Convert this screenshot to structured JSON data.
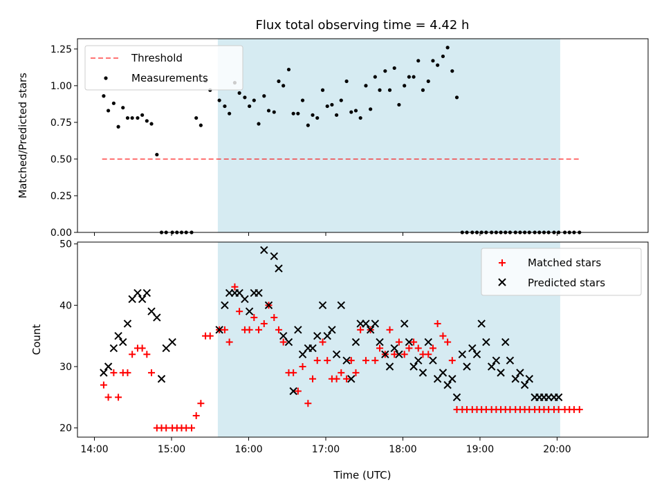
{
  "chart_data": {
    "title": "Flux total observing time = 4.42 h",
    "xlabel": "Time (UTC)",
    "x_unit": "hours UTC",
    "x_range": [
      13.78,
      21.18
    ],
    "x_ticks": [
      {
        "value": 14,
        "label": "14:00"
      },
      {
        "value": 15,
        "label": "15:00"
      },
      {
        "value": 16,
        "label": "16:00"
      },
      {
        "value": 17,
        "label": "17:00"
      },
      {
        "value": 18,
        "label": "18:00"
      },
      {
        "value": 19,
        "label": "19:00"
      },
      {
        "value": 20,
        "label": "20:00"
      }
    ],
    "observing_span": [
      15.6,
      20.04
    ],
    "colors": {
      "span": "#add8e6",
      "threshold": "#ff0000",
      "matched": "#ff0000",
      "predicted": "#000000",
      "measurement": "#000000"
    },
    "panels": [
      {
        "type": "scatter",
        "ylabel": "Matched/Predicted stars",
        "ylim": [
          0,
          1.32
        ],
        "y_ticks": [
          {
            "value": 0,
            "label": "0.00"
          },
          {
            "value": 0.25,
            "label": "0.25"
          },
          {
            "value": 0.5,
            "label": "0.50"
          },
          {
            "value": 0.75,
            "label": "0.75"
          },
          {
            "value": 1.0,
            "label": "1.00"
          },
          {
            "value": 1.25,
            "label": "1.25"
          }
        ],
        "legend": {
          "position": "top-left",
          "entries": [
            {
              "label": "Threshold",
              "kind": "dashed-line"
            },
            {
              "label": "Measurements",
              "kind": "dot"
            }
          ]
        },
        "threshold": {
          "value": 0.5,
          "x_from": 14.1,
          "x_to": 20.3
        },
        "measurements": {
          "x": [
            14.12,
            14.18,
            14.25,
            14.31,
            14.37,
            14.43,
            14.49,
            14.56,
            14.62,
            14.68,
            14.74,
            14.81,
            14.87,
            14.93,
            15.01,
            15.07,
            15.13,
            15.19,
            15.26,
            15.32,
            15.38,
            15.44,
            15.5,
            15.62,
            15.69,
            15.75,
            15.82,
            15.88,
            15.95,
            16.01,
            16.07,
            16.13,
            16.2,
            16.26,
            16.33,
            16.39,
            16.45,
            16.52,
            16.58,
            16.64,
            16.7,
            16.77,
            16.83,
            16.89,
            16.96,
            17.02,
            17.08,
            17.14,
            17.2,
            17.27,
            17.33,
            17.39,
            17.45,
            17.52,
            17.58,
            17.64,
            17.7,
            17.77,
            17.83,
            17.89,
            17.95,
            18.02,
            18.08,
            18.14,
            18.2,
            18.26,
            18.33,
            18.39,
            18.45,
            18.52,
            18.58,
            18.64,
            18.7,
            18.77,
            18.83,
            18.9,
            18.96,
            19.02,
            19.08,
            19.15,
            19.21,
            19.27,
            19.33,
            19.39,
            19.46,
            19.52,
            19.58,
            19.64,
            19.71,
            19.77,
            19.83,
            19.89,
            19.96,
            20.02,
            20.1,
            20.16,
            20.22,
            20.29
          ],
          "y": [
            0.93,
            0.83,
            0.88,
            0.72,
            0.85,
            0.78,
            0.78,
            0.78,
            0.8,
            0.76,
            0.74,
            0.53,
            0,
            0,
            0,
            0,
            0,
            0,
            0,
            0.78,
            0.73,
            1.03,
            0.97,
            0.9,
            0.86,
            0.81,
            1.02,
            0.95,
            0.92,
            0.86,
            0.9,
            0.74,
            0.93,
            0.83,
            0.82,
            1.03,
            1.0,
            1.11,
            0.81,
            0.81,
            0.9,
            0.73,
            0.8,
            0.78,
            0.97,
            0.86,
            0.87,
            0.8,
            0.9,
            1.03,
            0.82,
            0.83,
            0.78,
            1.0,
            0.84,
            1.06,
            0.97,
            1.1,
            0.97,
            1.12,
            0.87,
            1.0,
            1.06,
            1.06,
            1.17,
            0.97,
            1.03,
            1.17,
            1.14,
            1.2,
            1.26,
            1.1,
            0.92,
            0,
            0,
            0,
            0,
            0,
            0,
            0,
            0,
            0,
            0,
            0,
            0,
            0,
            0,
            0,
            0,
            0,
            0,
            0,
            0,
            0,
            0,
            0,
            0,
            0
          ]
        }
      },
      {
        "type": "scatter",
        "ylabel": "Count",
        "ylim": [
          18.5,
          50.3
        ],
        "y_ticks": [
          {
            "value": 20,
            "label": "20"
          },
          {
            "value": 30,
            "label": "30"
          },
          {
            "value": 40,
            "label": "40"
          },
          {
            "value": 50,
            "label": "50"
          }
        ],
        "legend": {
          "position": "top-right",
          "entries": [
            {
              "label": "Matched stars",
              "kind": "plus"
            },
            {
              "label": "Predicted stars",
              "kind": "cross"
            }
          ]
        },
        "matched": {
          "x": [
            14.12,
            14.18,
            14.25,
            14.31,
            14.37,
            14.43,
            14.49,
            14.56,
            14.62,
            14.68,
            14.74,
            14.81,
            14.87,
            14.93,
            15.01,
            15.07,
            15.13,
            15.19,
            15.26,
            15.32,
            15.38,
            15.44,
            15.5,
            15.62,
            15.69,
            15.75,
            15.82,
            15.88,
            15.95,
            16.01,
            16.07,
            16.13,
            16.2,
            16.26,
            16.33,
            16.39,
            16.45,
            16.52,
            16.58,
            16.64,
            16.7,
            16.77,
            16.83,
            16.89,
            16.96,
            17.02,
            17.08,
            17.14,
            17.2,
            17.27,
            17.33,
            17.39,
            17.45,
            17.52,
            17.58,
            17.64,
            17.7,
            17.77,
            17.83,
            17.89,
            17.95,
            18.02,
            18.08,
            18.14,
            18.2,
            18.26,
            18.33,
            18.39,
            18.45,
            18.52,
            18.58,
            18.64,
            18.7,
            18.77,
            18.83,
            18.9,
            18.96,
            19.02,
            19.08,
            19.15,
            19.21,
            19.27,
            19.33,
            19.39,
            19.46,
            19.52,
            19.58,
            19.64,
            19.71,
            19.77,
            19.83,
            19.89,
            19.96,
            20.02,
            20.1,
            20.16,
            20.22,
            20.29
          ],
          "y": [
            27,
            25,
            29,
            25,
            29,
            29,
            32,
            33,
            33,
            32,
            29,
            20,
            20,
            20,
            20,
            20,
            20,
            20,
            20,
            22,
            24,
            35,
            35,
            36,
            36,
            34,
            43,
            39,
            36,
            36,
            38,
            36,
            37,
            40,
            38,
            36,
            34,
            29,
            29,
            26,
            30,
            24,
            28,
            31,
            34,
            31,
            28,
            28,
            29,
            28,
            31,
            29,
            36,
            31,
            36,
            31,
            33,
            32,
            36,
            32,
            34,
            32,
            33,
            34,
            33,
            32,
            32,
            33,
            37,
            35,
            34,
            31,
            23,
            23,
            23,
            23,
            23,
            23,
            23,
            23,
            23,
            23,
            23,
            23,
            23,
            23,
            23,
            23,
            23,
            23,
            23,
            23,
            23,
            23,
            23,
            23,
            23,
            23
          ]
        },
        "predicted": {
          "x": [
            14.12,
            14.18,
            14.25,
            14.31,
            14.37,
            14.43,
            14.49,
            14.56,
            14.62,
            14.68,
            14.74,
            14.81,
            14.87,
            14.93,
            15.01,
            15.62,
            15.69,
            15.75,
            15.82,
            15.88,
            15.95,
            16.01,
            16.07,
            16.13,
            16.2,
            16.26,
            16.33,
            16.39,
            16.45,
            16.52,
            16.58,
            16.64,
            16.7,
            16.77,
            16.83,
            16.89,
            16.96,
            17.02,
            17.08,
            17.14,
            17.2,
            17.27,
            17.33,
            17.39,
            17.45,
            17.52,
            17.58,
            17.64,
            17.7,
            17.77,
            17.83,
            17.89,
            17.95,
            18.02,
            18.08,
            18.14,
            18.2,
            18.26,
            18.33,
            18.39,
            18.45,
            18.52,
            18.58,
            18.64,
            18.7,
            18.77,
            18.83,
            18.9,
            18.96,
            19.02,
            19.08,
            19.15,
            19.21,
            19.27,
            19.33,
            19.39,
            19.46,
            19.52,
            19.58,
            19.64,
            19.71,
            19.77,
            19.83,
            19.89,
            19.96,
            20.02
          ],
          "y": [
            29,
            30,
            33,
            35,
            34,
            37,
            41,
            42,
            41,
            42,
            39,
            38,
            28,
            33,
            34,
            36,
            40,
            42,
            42,
            42,
            41,
            39,
            42,
            42,
            49,
            40,
            48,
            46,
            35,
            34,
            26,
            36,
            32,
            33,
            33,
            35,
            40,
            35,
            36,
            32,
            40,
            31,
            28,
            34,
            37,
            37,
            36,
            37,
            34,
            32,
            30,
            33,
            32,
            37,
            34,
            30,
            31,
            29,
            34,
            31,
            28,
            29,
            27,
            28,
            25,
            32,
            30,
            33,
            32,
            37,
            34,
            30,
            31,
            29,
            34,
            31,
            28,
            29,
            27,
            28,
            25,
            25,
            25,
            25,
            25,
            25
          ]
        }
      }
    ]
  }
}
